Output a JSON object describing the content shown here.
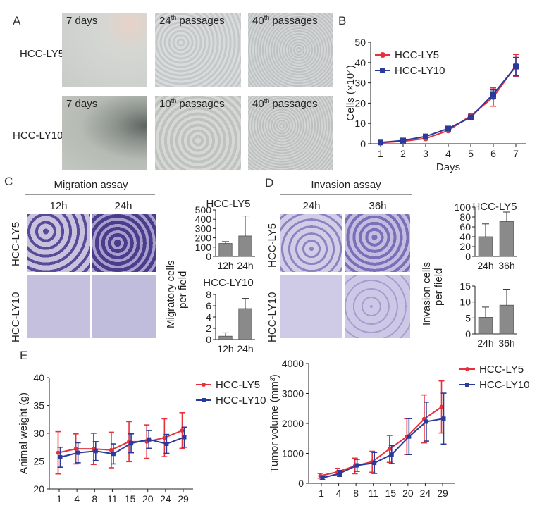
{
  "panels": {
    "A": "A",
    "B": "B",
    "C": "C",
    "D": "D",
    "E": "E"
  },
  "panelA": {
    "row_labels": [
      "HCC-LY5",
      "HCC-LY10"
    ],
    "captions": [
      {
        "main": "7 days",
        "sup": "",
        "tail": ""
      },
      {
        "main": "24",
        "sup": "th",
        "tail": " passages"
      },
      {
        "main": "40",
        "sup": "th",
        "tail": " passages"
      },
      {
        "main": "7 days",
        "sup": "",
        "tail": ""
      },
      {
        "main": "10",
        "sup": "th",
        "tail": " passages"
      },
      {
        "main": "40",
        "sup": "th",
        "tail": " passages"
      }
    ]
  },
  "panelC": {
    "title": "Migration assay",
    "cols": [
      "12h",
      "24h"
    ],
    "rows": [
      "HCC-LY5",
      "HCC-LY10"
    ],
    "ylabel_1": "Migratory cells",
    "ylabel_2": "per field"
  },
  "panelD": {
    "title": "Invasion assay",
    "cols": [
      "24h",
      "36h"
    ],
    "rows": [
      "HCC-LY5",
      "HCC-LY10"
    ],
    "ylabel_1": "Invasion cells",
    "ylabel_2": "per field"
  },
  "colors": {
    "red": "#e8303a",
    "blue": "#2b3a9a",
    "bar": "#8a8a8a",
    "migration_stain": "#5a4a9a",
    "invasion_stain": "#8f86c4"
  },
  "chart_data": [
    {
      "id": "B",
      "type": "line",
      "xlabel": "Days",
      "ylabel": "Cells (×10⁴)",
      "x": [
        1,
        2,
        3,
        4,
        5,
        6,
        7
      ],
      "ylim": [
        0,
        50
      ],
      "yticks": [
        0,
        10,
        20,
        30,
        40,
        50
      ],
      "legend": "top-left",
      "series": [
        {
          "name": "HCC-LY5",
          "values": [
            0.5,
            1.2,
            2.6,
            6.5,
            13.8,
            23.0,
            38.5
          ],
          "err": [
            0.2,
            0.3,
            0.4,
            0.6,
            0.8,
            4.5,
            5.5
          ],
          "color": "#e8303a"
        },
        {
          "name": "HCC-LY10",
          "values": [
            0.6,
            1.6,
            3.6,
            7.5,
            13.0,
            24.5,
            38.0
          ],
          "err": [
            0.2,
            0.3,
            0.4,
            0.6,
            0.8,
            2.0,
            4.5
          ],
          "color": "#2b3a9a"
        }
      ]
    },
    {
      "id": "C-top",
      "type": "bar",
      "title": "HCC-LY5",
      "categories": [
        "12h",
        "24h"
      ],
      "values": [
        140,
        220
      ],
      "err": [
        20,
        215
      ],
      "ylim": [
        0,
        500
      ],
      "yticks": [
        0,
        100,
        200,
        300,
        400,
        500
      ]
    },
    {
      "id": "C-bottom",
      "type": "bar",
      "title": "HCC-LY10",
      "categories": [
        "12h",
        "24h"
      ],
      "values": [
        0.6,
        5.5
      ],
      "err": [
        0.6,
        1.8
      ],
      "ylim": [
        0,
        8
      ],
      "yticks": [
        0,
        2,
        4,
        6,
        8
      ]
    },
    {
      "id": "D-top",
      "type": "bar",
      "title": "HCC-LY5",
      "categories": [
        "24h",
        "36h"
      ],
      "values": [
        40,
        71
      ],
      "err": [
        26,
        19
      ],
      "ylim": [
        0,
        100
      ],
      "yticks": [
        0,
        20,
        40,
        60,
        80,
        100
      ]
    },
    {
      "id": "D-bottom",
      "type": "bar",
      "title": "",
      "categories": [
        "24h",
        "36h"
      ],
      "values": [
        5.2,
        9.0
      ],
      "err": [
        3.2,
        5.0
      ],
      "ylim": [
        0,
        15
      ],
      "yticks": [
        0,
        5,
        10,
        15
      ]
    },
    {
      "id": "E-left",
      "type": "line",
      "ylabel": "Animal weight (g)",
      "categories": [
        "1",
        "4",
        "8",
        "11",
        "15",
        "20",
        "24",
        "29"
      ],
      "ylim": [
        20,
        40
      ],
      "yticks": [
        20,
        25,
        30,
        35,
        40
      ],
      "legend": "top-right",
      "series": [
        {
          "name": "HCC-LY5",
          "values": [
            26.5,
            27.2,
            27.2,
            27.0,
            28.5,
            28.5,
            29.2,
            30.5
          ],
          "err": [
            3.8,
            2.7,
            2.8,
            3.2,
            3.6,
            3.0,
            3.4,
            3.2
          ],
          "color": "#e8303a"
        },
        {
          "name": "HCC-LY10",
          "values": [
            25.7,
            26.5,
            26.8,
            26.3,
            28.2,
            28.9,
            28.1,
            29.3
          ],
          "err": [
            1.8,
            1.8,
            1.7,
            1.8,
            1.7,
            1.6,
            1.7,
            1.8
          ],
          "color": "#2b3a9a"
        }
      ]
    },
    {
      "id": "E-right",
      "type": "line",
      "ylabel": "Tumor volume (mm³)",
      "categories": [
        "1",
        "4",
        "8",
        "11",
        "15",
        "20",
        "24",
        "29"
      ],
      "ylim": [
        0,
        4000
      ],
      "yticks": [
        0,
        1000,
        2000,
        3000,
        4000
      ],
      "legend": "top-left",
      "series": [
        {
          "name": "HCC-LY5",
          "values": [
            250,
            380,
            580,
            720,
            1150,
            1560,
            2150,
            2550
          ],
          "err": [
            80,
            120,
            260,
            350,
            450,
            600,
            800,
            870
          ],
          "color": "#e8303a"
        },
        {
          "name": "HCC-LY10",
          "values": [
            180,
            330,
            600,
            680,
            960,
            1560,
            2060,
            2160
          ],
          "err": [
            60,
            100,
            200,
            350,
            300,
            600,
            650,
            850
          ],
          "color": "#2b3a9a"
        }
      ]
    }
  ]
}
